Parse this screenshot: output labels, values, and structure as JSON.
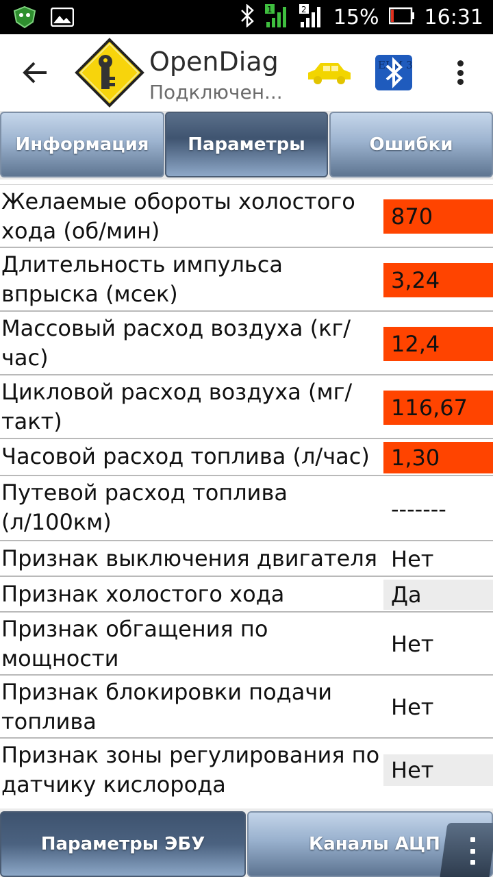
{
  "status_bar": {
    "battery_text": "15%",
    "time": "16:31",
    "sim1_label": "1",
    "sim2_label": "2",
    "battery_level": 0.15
  },
  "action_bar": {
    "title": "OpenDiag",
    "subtitle": "Подключен...",
    "bt_logo_text": "ELM 327"
  },
  "tabs": [
    {
      "label": "Информация",
      "active": false
    },
    {
      "label": "Параметры",
      "active": true
    },
    {
      "label": "Ошибки",
      "active": false
    }
  ],
  "parameters": [
    {
      "label": "Желаемые обороты холостого хода (об/мин)",
      "value": "870",
      "highlight": "red"
    },
    {
      "label": "Длительность импульса впрыска (мсек)",
      "value": "3,24",
      "highlight": "red"
    },
    {
      "label": "Массовый расход воздуха (кг/час)",
      "value": "12,4",
      "highlight": "red"
    },
    {
      "label": "Цикловой расход воздуха (мг/такт)",
      "value": "116,67",
      "highlight": "red"
    },
    {
      "label": "Часовой расход топлива (л/час)",
      "value": "1,30",
      "highlight": "red"
    },
    {
      "label": "Путевой расход топлива (л/100км)",
      "value": "-------",
      "highlight": "none"
    },
    {
      "label": "Признак выключения двигателя",
      "value": "Нет",
      "highlight": "none"
    },
    {
      "label": "Признак холостого хода",
      "value": "Да",
      "highlight": "grey"
    },
    {
      "label": "Признак обгащения по мощности",
      "value": "Нет",
      "highlight": "none"
    },
    {
      "label": "Признак блокировки подачи топлива",
      "value": "Нет",
      "highlight": "none"
    },
    {
      "label": "Признак зоны регулирования по датчику кислорода",
      "value": "Нет",
      "highlight": "grey"
    }
  ],
  "bottom_tabs": [
    {
      "label": "Параметры ЭБУ",
      "active": true
    },
    {
      "label": "Каналы АЦП",
      "active": false
    }
  ],
  "colors": {
    "highlight_red": "#ff4400",
    "highlight_grey": "#ececec",
    "car_yellow": "#f2d500"
  }
}
